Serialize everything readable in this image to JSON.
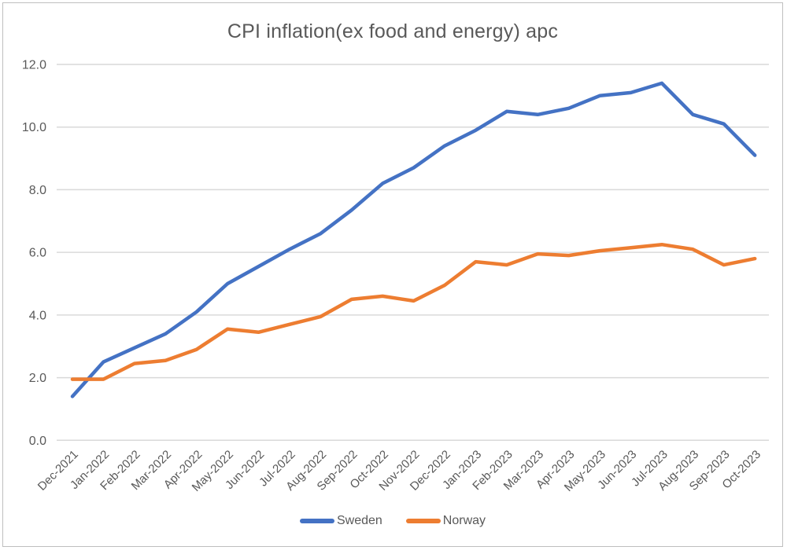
{
  "chart_data": {
    "type": "line",
    "title": "CPI inflation(ex food and energy) apc",
    "categories": [
      "Dec-2021",
      "Jan-2022",
      "Feb-2022",
      "Mar-2022",
      "Apr-2022",
      "May-2022",
      "Jun-2022",
      "Jul-2022",
      "Aug-2022",
      "Sep-2022",
      "Oct-2022",
      "Nov-2022",
      "Dec-2022",
      "Jan-2023",
      "Feb-2023",
      "Mar-2023",
      "Apr-2023",
      "May-2023",
      "Jun-2023",
      "Jul-2023",
      "Aug-2023",
      "Sep-2023",
      "Oct-2023"
    ],
    "series": [
      {
        "name": "Sweden",
        "color": "#4472C4",
        "values": [
          1.4,
          2.5,
          2.95,
          3.4,
          4.1,
          5.0,
          5.55,
          6.1,
          6.6,
          7.35,
          8.2,
          8.7,
          9.4,
          9.9,
          10.5,
          10.4,
          10.6,
          11.0,
          11.1,
          11.4,
          10.4,
          10.1,
          9.1
        ]
      },
      {
        "name": "Norway",
        "color": "#ED7D31",
        "values": [
          1.95,
          1.95,
          2.45,
          2.55,
          2.9,
          3.55,
          3.45,
          3.7,
          3.95,
          4.5,
          4.6,
          4.45,
          4.95,
          5.7,
          5.6,
          5.95,
          5.9,
          6.05,
          6.15,
          6.25,
          6.1,
          5.6,
          5.8
        ]
      }
    ],
    "xlabel": "",
    "ylabel": "",
    "ylim": [
      0,
      12
    ],
    "ytick_step": 2,
    "ytick_labels": [
      "0.0",
      "2.0",
      "4.0",
      "6.0",
      "8.0",
      "10.0",
      "12.0"
    ],
    "grid": true,
    "legend_position": "bottom",
    "colors": {
      "gridline": "#D9D9D9",
      "text": "#595959",
      "frame_border": "#BFBFBF",
      "background": "#FFFFFF"
    }
  }
}
